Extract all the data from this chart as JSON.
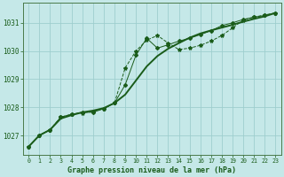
{
  "title": "Graphe pression niveau de la mer (hPa)",
  "bg_color": "#c5e8e8",
  "grid_color": "#9ecece",
  "line_color": "#1a5c1a",
  "x_ticks": [
    0,
    1,
    2,
    3,
    4,
    5,
    6,
    7,
    8,
    9,
    10,
    11,
    12,
    13,
    14,
    15,
    16,
    17,
    18,
    19,
    20,
    21,
    22,
    23
  ],
  "y_ticks": [
    1027,
    1028,
    1029,
    1030,
    1031
  ],
  "ylim": [
    1026.3,
    1031.7
  ],
  "xlim": [
    -0.5,
    23.5
  ],
  "series1_x": [
    0,
    1,
    2,
    3,
    4,
    5,
    6,
    7,
    8,
    9,
    10,
    11,
    12,
    13,
    14,
    15,
    16,
    17,
    18,
    19,
    20,
    21,
    22,
    23
  ],
  "series1_y": [
    1026.6,
    1027.0,
    1027.2,
    1027.65,
    1027.75,
    1027.8,
    1027.85,
    1027.95,
    1028.15,
    1029.4,
    1030.0,
    1030.38,
    1030.55,
    1030.28,
    1030.05,
    1030.1,
    1030.2,
    1030.35,
    1030.55,
    1030.82,
    1031.1,
    1031.2,
    1031.28,
    1031.35
  ],
  "series2_x": [
    0,
    1,
    2,
    3,
    4,
    5,
    6,
    7,
    8,
    9,
    10,
    11,
    12,
    13,
    14,
    15,
    16,
    17,
    18,
    19,
    20,
    21,
    22,
    23
  ],
  "series2_y": [
    1026.6,
    1027.0,
    1027.2,
    1027.65,
    1027.75,
    1027.82,
    1027.82,
    1027.95,
    1028.15,
    1028.8,
    1029.85,
    1030.45,
    1030.1,
    1030.22,
    1030.35,
    1030.45,
    1030.58,
    1030.72,
    1030.9,
    1031.0,
    1031.12,
    1031.2,
    1031.26,
    1031.35
  ],
  "series3_x": [
    0,
    1,
    2,
    3,
    4,
    5,
    6,
    7,
    8,
    9,
    10,
    11,
    12,
    13,
    14,
    15,
    16,
    17,
    18,
    19,
    20,
    21,
    22,
    23
  ],
  "series3_y": [
    1026.6,
    1027.0,
    1027.2,
    1027.6,
    1027.72,
    1027.82,
    1027.88,
    1027.97,
    1028.15,
    1028.45,
    1028.95,
    1029.45,
    1029.82,
    1030.08,
    1030.28,
    1030.47,
    1030.62,
    1030.73,
    1030.83,
    1030.93,
    1031.04,
    1031.14,
    1031.23,
    1031.35
  ],
  "xlabel_fontsize": 6,
  "ytick_fontsize": 5.5,
  "xtick_fontsize": 4.8
}
